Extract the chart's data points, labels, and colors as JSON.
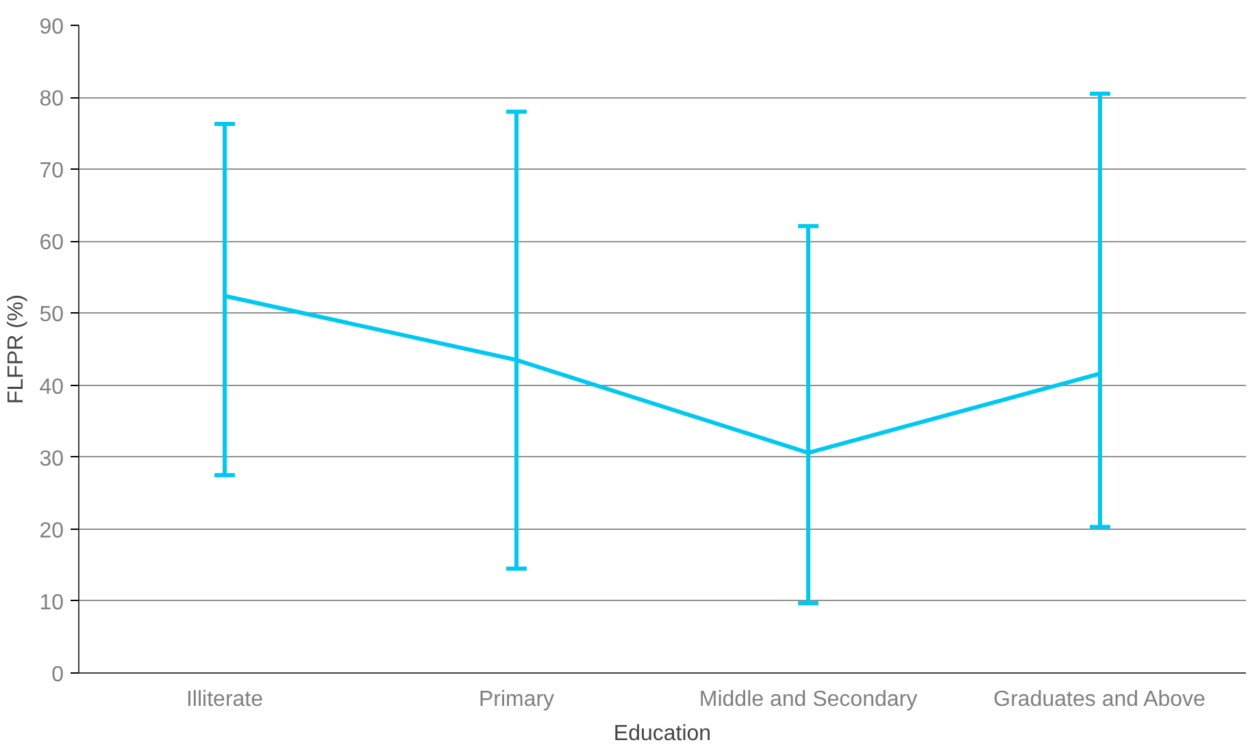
{
  "chart_data": {
    "type": "line",
    "xlabel": "Education",
    "ylabel": "FLFPR (%)",
    "categories": [
      "Illiterate",
      "Primary",
      "Middle and Secondary",
      "Graduates and Above"
    ],
    "series": [
      {
        "color": "#00c8f0",
        "values": [
          52.4,
          43.5,
          30.6,
          41.6
        ],
        "errors": [
          [
            27.5,
            76.3
          ],
          [
            14.5,
            78.0
          ],
          [
            9.7,
            62.1
          ],
          [
            20.3,
            80.5
          ]
        ]
      }
    ],
    "ylim": [
      0,
      90
    ],
    "yticks": [
      0,
      10,
      20,
      30,
      40,
      50,
      60,
      70,
      80,
      90
    ],
    "grid": "y"
  }
}
